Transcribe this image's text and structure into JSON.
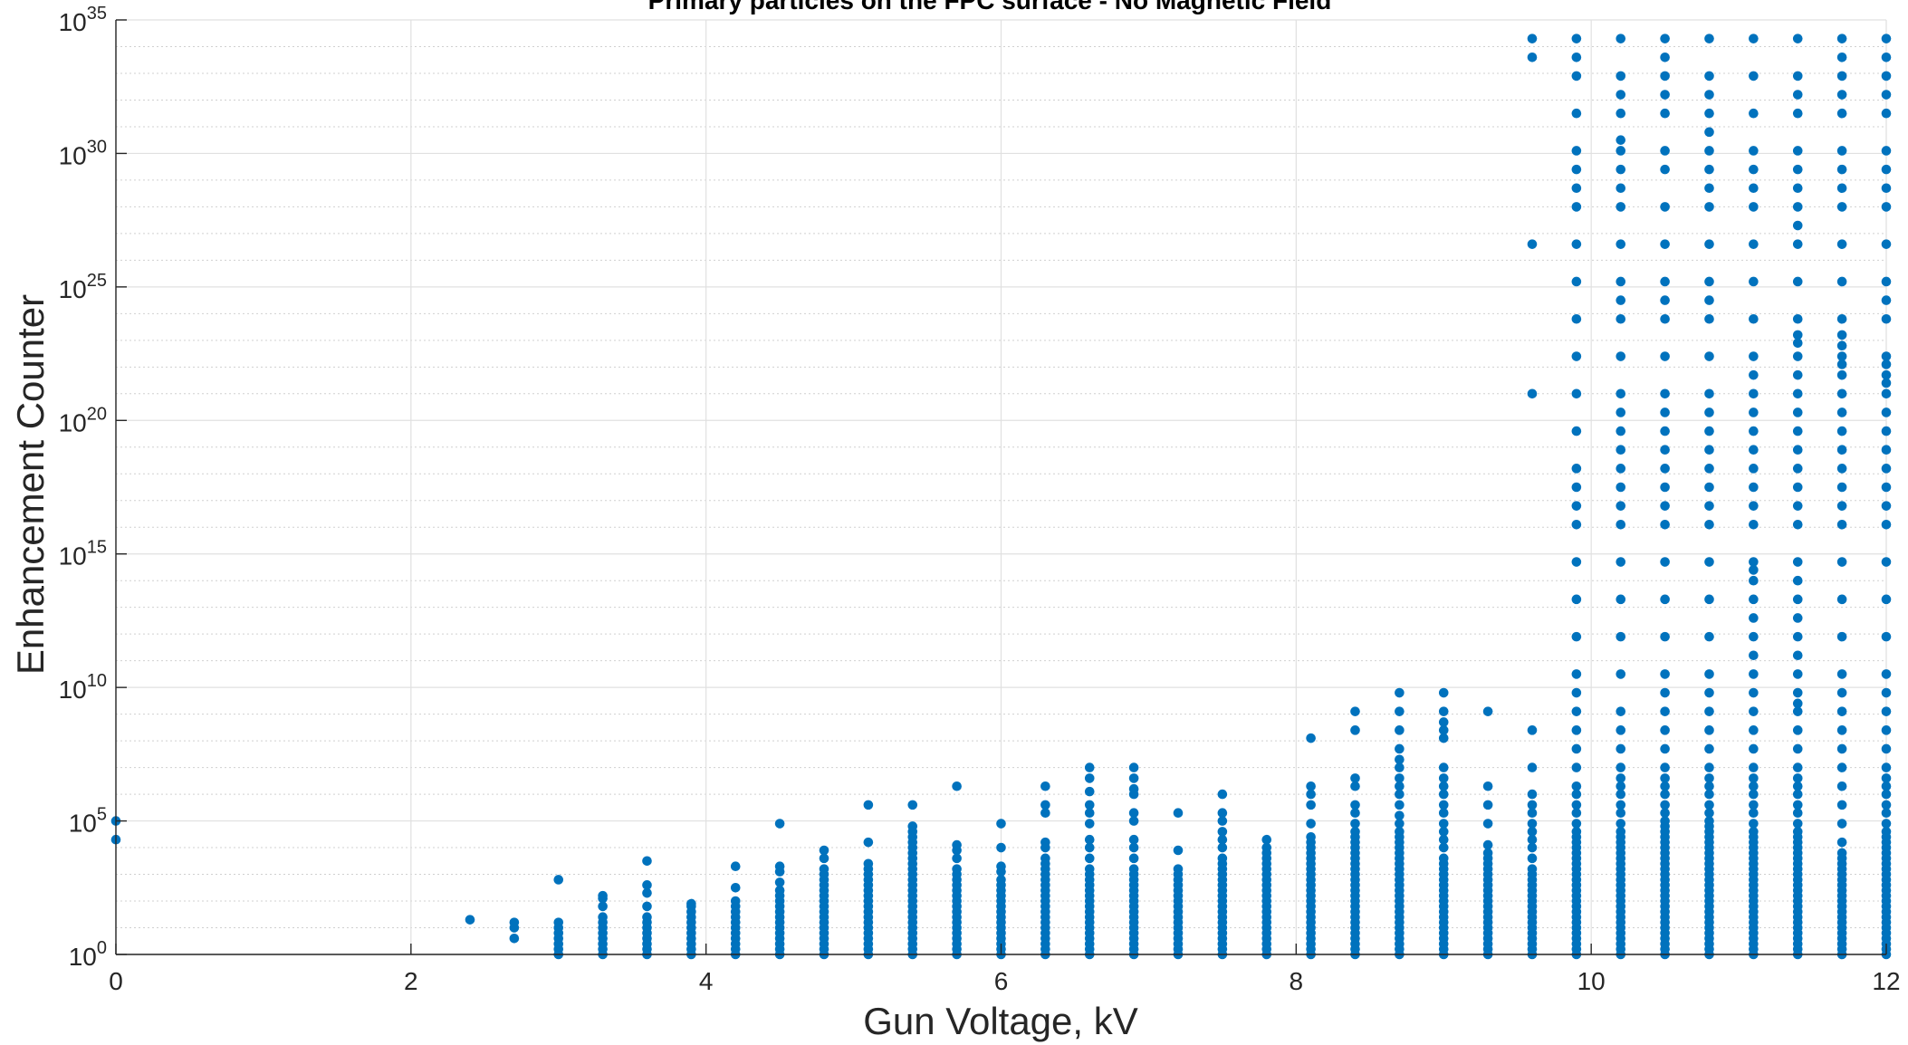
{
  "chart_data": {
    "type": "scatter",
    "title": "Primary particles on the FPC surface - No Magnetic Field",
    "xlabel": "Gun Voltage, kV",
    "ylabel": "Enhancement Counter",
    "xlim": [
      0,
      12
    ],
    "ylim_log10": [
      0,
      35
    ],
    "yscale": "log",
    "grid": true,
    "minor_grid": true,
    "x_ticks": [
      "0",
      "2",
      "4",
      "6",
      "8",
      "10",
      "12"
    ],
    "y_ticks": [
      {
        "base": "10",
        "exp": "0"
      },
      {
        "base": "10",
        "exp": "5"
      },
      {
        "base": "10",
        "exp": "10"
      },
      {
        "base": "10",
        "exp": "15"
      },
      {
        "base": "10",
        "exp": "20"
      },
      {
        "base": "10",
        "exp": "25"
      },
      {
        "base": "10",
        "exp": "30"
      },
      {
        "base": "10",
        "exp": "35"
      }
    ],
    "marker_color": "#0072BD",
    "note_y_values": "exponents of 10 (y axis is logarithmic)",
    "points": [
      {
        "x": 0,
        "exps": [
          4.3,
          5.0
        ]
      },
      {
        "x": 2.4,
        "exps": [
          1.3
        ]
      },
      {
        "x": 2.7,
        "exps": [
          0.6,
          1.0,
          1.2
        ]
      },
      {
        "x": 3.0,
        "exps": [
          0,
          0.2,
          0.4,
          0.6,
          0.8,
          1.0,
          1.2,
          2.8
        ]
      },
      {
        "x": 3.3,
        "exps": [
          0,
          0.2,
          0.4,
          0.6,
          0.8,
          1.0,
          1.2,
          1.4,
          1.8,
          2.1,
          2.2
        ]
      },
      {
        "x": 3.6,
        "exps": [
          0,
          0.2,
          0.4,
          0.6,
          0.8,
          1.0,
          1.2,
          1.4,
          1.8,
          2.3,
          2.6,
          3.5
        ]
      },
      {
        "x": 3.9,
        "exps": [
          0,
          0.2,
          0.4,
          0.6,
          0.8,
          1.0,
          1.2,
          1.4,
          1.6,
          1.8,
          1.9
        ]
      },
      {
        "x": 4.2,
        "exps": [
          0,
          0.2,
          0.4,
          0.6,
          0.8,
          1.0,
          1.2,
          1.4,
          1.6,
          1.8,
          2.0,
          2.5,
          3.3
        ]
      },
      {
        "x": 4.5,
        "exps": [
          0,
          0.2,
          0.4,
          0.6,
          0.8,
          1.0,
          1.2,
          1.4,
          1.6,
          1.8,
          2.0,
          2.2,
          2.4,
          2.7,
          3.1,
          3.3,
          4.9
        ]
      },
      {
        "x": 4.8,
        "exps": [
          0,
          0.2,
          0.4,
          0.6,
          0.8,
          1.0,
          1.2,
          1.4,
          1.6,
          1.8,
          2.0,
          2.2,
          2.4,
          2.6,
          2.8,
          3.0,
          3.2,
          3.6,
          3.9
        ]
      },
      {
        "x": 5.1,
        "exps": [
          0,
          0.2,
          0.4,
          0.6,
          0.8,
          1.0,
          1.2,
          1.4,
          1.6,
          1.8,
          2.0,
          2.2,
          2.4,
          2.6,
          2.8,
          3.0,
          3.2,
          3.4,
          4.2,
          5.6
        ]
      },
      {
        "x": 5.4,
        "exps": [
          0,
          0.2,
          0.4,
          0.6,
          0.8,
          1.0,
          1.2,
          1.4,
          1.6,
          1.8,
          2.0,
          2.2,
          2.4,
          2.6,
          2.8,
          3.0,
          3.2,
          3.4,
          3.6,
          3.8,
          4.0,
          4.2,
          4.4,
          4.6,
          4.8,
          5.6
        ]
      },
      {
        "x": 5.7,
        "exps": [
          0,
          0.2,
          0.4,
          0.6,
          0.8,
          1.0,
          1.2,
          1.4,
          1.6,
          1.8,
          2.0,
          2.2,
          2.4,
          2.6,
          2.8,
          3.0,
          3.2,
          3.6,
          3.9,
          4.1,
          6.3
        ]
      },
      {
        "x": 6.0,
        "exps": [
          0,
          0.2,
          0.4,
          0.6,
          0.8,
          1.0,
          1.2,
          1.4,
          1.6,
          1.8,
          2.0,
          2.2,
          2.4,
          2.6,
          2.8,
          3.1,
          3.3,
          4.0,
          4.9
        ]
      },
      {
        "x": 6.3,
        "exps": [
          0,
          0.2,
          0.4,
          0.6,
          0.8,
          1.0,
          1.2,
          1.4,
          1.6,
          1.8,
          2.0,
          2.2,
          2.4,
          2.6,
          2.8,
          3.0,
          3.2,
          3.4,
          3.6,
          4.0,
          4.2,
          5.3,
          5.6,
          6.3
        ]
      },
      {
        "x": 6.6,
        "exps": [
          0,
          0.2,
          0.4,
          0.6,
          0.8,
          1.0,
          1.2,
          1.4,
          1.6,
          1.8,
          2.0,
          2.2,
          2.4,
          2.6,
          2.8,
          3.0,
          3.2,
          3.6,
          4.0,
          4.3,
          4.9,
          5.3,
          5.6,
          6.1,
          6.6,
          7.0
        ]
      },
      {
        "x": 6.9,
        "exps": [
          0,
          0.2,
          0.4,
          0.6,
          0.8,
          1.0,
          1.2,
          1.4,
          1.6,
          1.8,
          2.0,
          2.2,
          2.4,
          2.6,
          2.8,
          3.0,
          3.2,
          3.6,
          4.0,
          4.3,
          5.0,
          5.3,
          6.0,
          6.2,
          6.6,
          7.0
        ]
      },
      {
        "x": 7.2,
        "exps": [
          0,
          0.2,
          0.4,
          0.6,
          0.8,
          1.0,
          1.2,
          1.4,
          1.6,
          1.8,
          2.0,
          2.2,
          2.4,
          2.6,
          2.8,
          3.0,
          3.2,
          3.9,
          5.3
        ]
      },
      {
        "x": 7.5,
        "exps": [
          0,
          0.2,
          0.4,
          0.6,
          0.8,
          1.0,
          1.2,
          1.4,
          1.6,
          1.8,
          2.0,
          2.2,
          2.4,
          2.6,
          2.8,
          3.0,
          3.2,
          3.4,
          3.6,
          4.0,
          4.3,
          4.6,
          5.0,
          5.3,
          6.0
        ]
      },
      {
        "x": 7.8,
        "exps": [
          0,
          0.2,
          0.4,
          0.6,
          0.8,
          1.0,
          1.2,
          1.4,
          1.6,
          1.8,
          2.0,
          2.2,
          2.4,
          2.6,
          2.8,
          3.0,
          3.2,
          3.4,
          3.6,
          3.8,
          4.0,
          4.3
        ]
      },
      {
        "x": 8.1,
        "exps": [
          0,
          0.2,
          0.4,
          0.6,
          0.8,
          1.0,
          1.2,
          1.4,
          1.6,
          1.8,
          2.0,
          2.2,
          2.4,
          2.6,
          2.8,
          3.0,
          3.2,
          3.4,
          3.6,
          3.8,
          4.0,
          4.2,
          4.4,
          4.9,
          5.6,
          6.0,
          6.3,
          8.1
        ]
      },
      {
        "x": 8.4,
        "exps": [
          0,
          0.2,
          0.4,
          0.6,
          0.8,
          1.0,
          1.2,
          1.4,
          1.6,
          1.8,
          2.0,
          2.2,
          2.4,
          2.6,
          2.8,
          3.0,
          3.2,
          3.4,
          3.6,
          3.8,
          4.0,
          4.2,
          4.4,
          4.6,
          4.9,
          5.3,
          5.6,
          6.3,
          6.6,
          8.4,
          9.1
        ]
      },
      {
        "x": 8.7,
        "exps": [
          0,
          0.2,
          0.4,
          0.6,
          0.8,
          1.0,
          1.2,
          1.4,
          1.6,
          1.8,
          2.0,
          2.2,
          2.4,
          2.6,
          2.8,
          3.0,
          3.2,
          3.4,
          3.6,
          3.8,
          4.0,
          4.2,
          4.4,
          4.6,
          4.9,
          5.2,
          5.6,
          6.0,
          6.3,
          6.6,
          7.0,
          7.3,
          7.7,
          8.4,
          9.1,
          9.8
        ]
      },
      {
        "x": 9.0,
        "exps": [
          0,
          0.2,
          0.4,
          0.6,
          0.8,
          1.0,
          1.2,
          1.4,
          1.6,
          1.8,
          2.0,
          2.2,
          2.4,
          2.6,
          2.8,
          3.0,
          3.2,
          3.4,
          3.6,
          4.0,
          4.3,
          4.6,
          4.9,
          5.3,
          5.6,
          6.0,
          6.3,
          6.6,
          7.0,
          8.1,
          8.4,
          8.7,
          9.1,
          9.8
        ]
      },
      {
        "x": 9.3,
        "exps": [
          0,
          0.2,
          0.4,
          0.6,
          0.8,
          1.0,
          1.2,
          1.4,
          1.6,
          1.8,
          2.0,
          2.2,
          2.4,
          2.6,
          2.8,
          3.0,
          3.2,
          3.4,
          3.6,
          3.8,
          4.1,
          4.9,
          5.6,
          6.3,
          9.1
        ]
      },
      {
        "x": 9.6,
        "exps": [
          0,
          0.2,
          0.4,
          0.6,
          0.8,
          1.0,
          1.2,
          1.4,
          1.6,
          1.8,
          2.0,
          2.2,
          2.4,
          2.6,
          2.8,
          3.0,
          3.2,
          3.6,
          4.0,
          4.3,
          4.6,
          4.9,
          5.3,
          5.6,
          6.0,
          7.0,
          8.4,
          21.0,
          26.6,
          33.6,
          34.3
        ]
      },
      {
        "x": 9.9,
        "exps": [
          0,
          0.2,
          0.4,
          0.6,
          0.8,
          1.0,
          1.2,
          1.4,
          1.6,
          1.8,
          2.0,
          2.2,
          2.4,
          2.6,
          2.8,
          3.0,
          3.2,
          3.4,
          3.6,
          3.8,
          4.0,
          4.2,
          4.4,
          4.6,
          4.9,
          5.3,
          5.6,
          6.0,
          6.3,
          7.0,
          7.7,
          8.4,
          9.1,
          9.8,
          10.5,
          11.9,
          13.3,
          14.7,
          16.1,
          16.8,
          17.5,
          18.2,
          19.6,
          21.0,
          22.4,
          23.8,
          25.2,
          26.6,
          28.0,
          28.7,
          29.4,
          30.1,
          31.5,
          32.9,
          33.6,
          34.3
        ]
      },
      {
        "x": 10.2,
        "exps": [
          0,
          0.2,
          0.4,
          0.6,
          0.8,
          1.0,
          1.2,
          1.4,
          1.6,
          1.8,
          2.0,
          2.2,
          2.4,
          2.6,
          2.8,
          3.0,
          3.2,
          3.4,
          3.6,
          3.8,
          4.0,
          4.2,
          4.4,
          4.6,
          4.9,
          5.3,
          5.6,
          6.0,
          6.3,
          6.6,
          7.0,
          7.7,
          8.4,
          9.1,
          10.5,
          11.9,
          13.3,
          14.7,
          16.1,
          16.8,
          17.5,
          18.2,
          18.9,
          19.6,
          20.3,
          21.0,
          22.4,
          23.8,
          24.5,
          25.2,
          26.6,
          28.0,
          28.7,
          29.4,
          30.1,
          30.5,
          31.5,
          32.2,
          32.9,
          34.3
        ]
      },
      {
        "x": 10.5,
        "exps": [
          0,
          0.2,
          0.4,
          0.6,
          0.8,
          1.0,
          1.2,
          1.4,
          1.6,
          1.8,
          2.0,
          2.2,
          2.4,
          2.6,
          2.8,
          3.0,
          3.2,
          3.4,
          3.6,
          3.8,
          4.0,
          4.2,
          4.4,
          4.6,
          4.8,
          5.0,
          5.3,
          5.6,
          6.0,
          6.3,
          6.6,
          7.0,
          7.7,
          8.4,
          9.1,
          9.8,
          10.5,
          11.9,
          13.3,
          14.7,
          16.1,
          16.8,
          17.5,
          18.2,
          18.9,
          19.6,
          20.3,
          21.0,
          22.4,
          23.8,
          24.5,
          25.2,
          26.6,
          28.0,
          29.4,
          30.1,
          31.5,
          32.2,
          32.9,
          33.6,
          34.3
        ]
      },
      {
        "x": 10.8,
        "exps": [
          0,
          0.2,
          0.4,
          0.6,
          0.8,
          1.0,
          1.2,
          1.4,
          1.6,
          1.8,
          2.0,
          2.2,
          2.4,
          2.6,
          2.8,
          3.0,
          3.2,
          3.4,
          3.6,
          3.8,
          4.0,
          4.2,
          4.4,
          4.6,
          4.8,
          5.0,
          5.3,
          5.6,
          6.0,
          6.3,
          6.6,
          7.0,
          7.7,
          8.4,
          9.1,
          9.8,
          10.5,
          11.9,
          13.3,
          14.7,
          16.1,
          16.8,
          17.5,
          18.2,
          18.9,
          19.6,
          20.3,
          21.0,
          22.4,
          23.8,
          24.5,
          25.2,
          26.6,
          28.0,
          28.7,
          29.4,
          30.1,
          30.8,
          31.5,
          32.2,
          32.9,
          34.3
        ]
      },
      {
        "x": 11.1,
        "exps": [
          0,
          0.2,
          0.4,
          0.6,
          0.8,
          1.0,
          1.2,
          1.4,
          1.6,
          1.8,
          2.0,
          2.2,
          2.4,
          2.6,
          2.8,
          3.0,
          3.2,
          3.4,
          3.6,
          3.8,
          4.0,
          4.2,
          4.4,
          4.6,
          4.9,
          5.3,
          5.6,
          6.0,
          6.3,
          6.6,
          7.0,
          7.7,
          8.4,
          9.1,
          9.8,
          10.5,
          11.2,
          11.9,
          12.6,
          13.3,
          14.0,
          14.4,
          14.7,
          16.1,
          16.8,
          17.5,
          18.2,
          18.9,
          19.6,
          20.3,
          21.0,
          21.7,
          22.4,
          23.8,
          25.2,
          26.6,
          28.0,
          28.7,
          29.4,
          30.1,
          31.5,
          32.9,
          34.3
        ]
      },
      {
        "x": 11.4,
        "exps": [
          0,
          0.2,
          0.4,
          0.6,
          0.8,
          1.0,
          1.2,
          1.4,
          1.6,
          1.8,
          2.0,
          2.2,
          2.4,
          2.6,
          2.8,
          3.0,
          3.2,
          3.4,
          3.6,
          3.8,
          4.0,
          4.2,
          4.4,
          4.6,
          4.9,
          5.3,
          5.6,
          6.0,
          6.3,
          6.6,
          7.0,
          7.7,
          8.4,
          9.1,
          9.4,
          9.8,
          10.5,
          11.2,
          11.9,
          12.6,
          13.3,
          14.0,
          14.7,
          16.1,
          16.8,
          17.5,
          18.2,
          18.9,
          19.6,
          20.3,
          21.0,
          21.7,
          22.4,
          22.9,
          23.2,
          23.8,
          25.2,
          26.6,
          27.3,
          28.0,
          28.7,
          29.4,
          30.1,
          31.5,
          32.2,
          32.9,
          34.3
        ]
      },
      {
        "x": 11.7,
        "exps": [
          0,
          0.2,
          0.4,
          0.6,
          0.8,
          1.0,
          1.2,
          1.4,
          1.6,
          1.8,
          2.0,
          2.2,
          2.4,
          2.6,
          2.8,
          3.0,
          3.2,
          3.4,
          3.6,
          3.8,
          4.2,
          4.9,
          5.6,
          6.3,
          7.0,
          7.7,
          8.4,
          9.1,
          9.8,
          10.5,
          11.9,
          13.3,
          14.7,
          16.1,
          16.8,
          17.5,
          18.2,
          18.9,
          19.6,
          20.3,
          21.0,
          21.7,
          22.1,
          22.4,
          22.8,
          23.2,
          23.8,
          25.2,
          26.6,
          28.0,
          28.7,
          29.4,
          30.1,
          31.5,
          32.2,
          32.9,
          33.6,
          34.3
        ]
      },
      {
        "x": 12.0,
        "exps": [
          0,
          0.2,
          0.4,
          0.6,
          0.8,
          1.0,
          1.2,
          1.4,
          1.6,
          1.8,
          2.0,
          2.2,
          2.4,
          2.6,
          2.8,
          3.0,
          3.2,
          3.4,
          3.6,
          3.8,
          4.0,
          4.2,
          4.4,
          4.6,
          4.9,
          5.3,
          5.6,
          6.0,
          6.3,
          6.6,
          7.0,
          7.7,
          8.4,
          9.1,
          9.8,
          10.5,
          11.9,
          13.3,
          14.7,
          16.1,
          16.8,
          17.5,
          18.2,
          18.9,
          19.6,
          20.3,
          21.0,
          21.4,
          21.7,
          22.1,
          22.4,
          23.8,
          24.5,
          25.2,
          26.6,
          28.0,
          28.7,
          29.4,
          30.1,
          31.5,
          32.2,
          32.9,
          33.6,
          34.3
        ]
      }
    ]
  }
}
